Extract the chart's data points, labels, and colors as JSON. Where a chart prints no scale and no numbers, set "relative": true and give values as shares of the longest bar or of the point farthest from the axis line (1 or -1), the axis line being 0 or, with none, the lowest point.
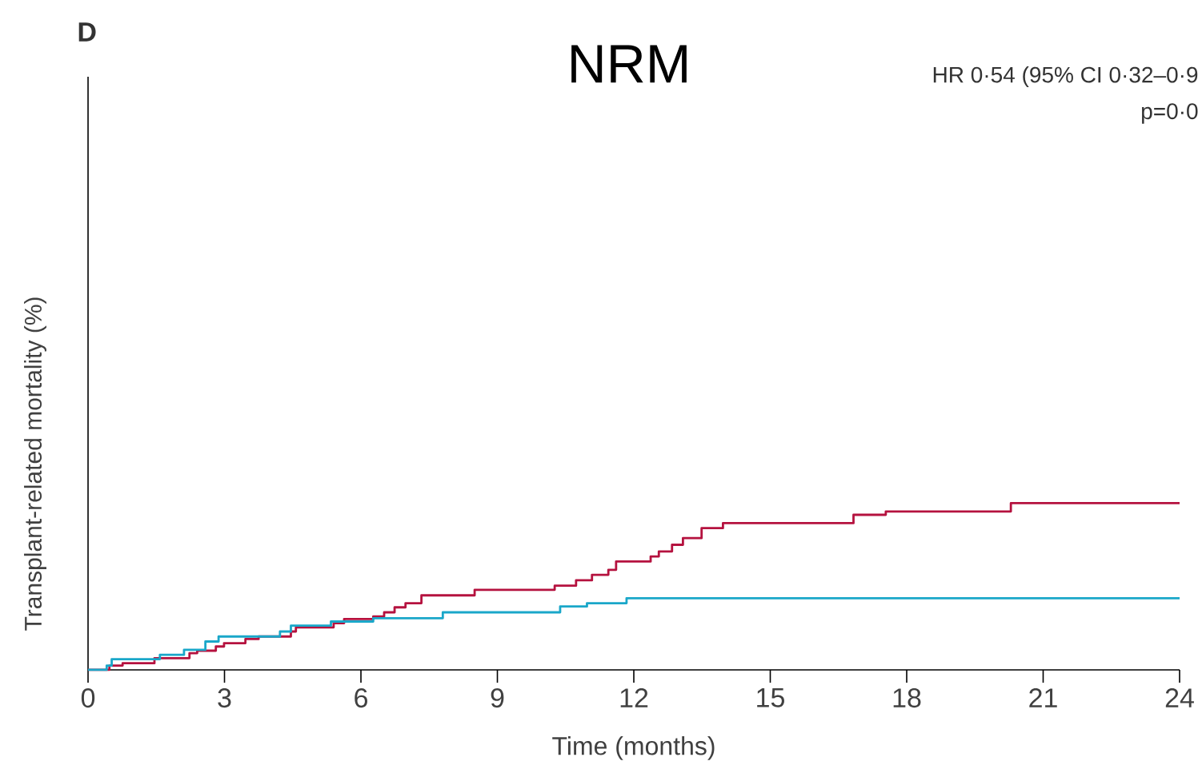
{
  "chart_data": {
    "type": "step",
    "title": "NRM",
    "xlabel": "Time (months)",
    "ylabel": "Transplant-related mortality (%)",
    "relative": true,
    "annotations": [
      "D",
      "HR 0·54 (95% CI 0·32–0·9",
      "p=0·0"
    ],
    "xlim": [
      0,
      24
    ],
    "xticks": [
      0,
      3,
      6,
      9,
      12,
      15,
      18,
      21,
      24
    ],
    "series": [
      {
        "color": "#b5123f",
        "x": [
          0,
          0.47,
          0.76,
          1.46,
          2.23,
          2.4,
          2.81,
          2.99,
          3.46,
          3.75,
          4.46,
          4.57,
          5.4,
          5.63,
          6.27,
          6.51,
          6.74,
          6.98,
          7.33,
          8.5,
          10.26,
          10.73,
          11.08,
          11.44,
          11.61,
          12.37,
          12.55,
          12.84,
          13.08,
          13.49,
          13.96,
          16.83,
          17.54,
          20.29,
          24
        ],
        "values": [
          0,
          0.026,
          0.04,
          0.07,
          0.1,
          0.115,
          0.14,
          0.16,
          0.185,
          0.2,
          0.23,
          0.255,
          0.28,
          0.305,
          0.32,
          0.345,
          0.375,
          0.4,
          0.447,
          0.48,
          0.505,
          0.537,
          0.57,
          0.6,
          0.65,
          0.68,
          0.71,
          0.75,
          0.79,
          0.85,
          0.88,
          0.93,
          0.95,
          1.0,
          1.0
        ]
      },
      {
        "color": "#1aa7c9",
        "x": [
          0,
          0.41,
          0.52,
          1.58,
          2.11,
          2.58,
          2.87,
          4.22,
          4.46,
          5.34,
          6.27,
          7.8,
          10.38,
          10.97,
          11.84,
          24
        ],
        "values": [
          0,
          0.026,
          0.064,
          0.09,
          0.12,
          0.17,
          0.2,
          0.23,
          0.265,
          0.29,
          0.31,
          0.345,
          0.38,
          0.4,
          0.43,
          0.43
        ]
      }
    ]
  }
}
